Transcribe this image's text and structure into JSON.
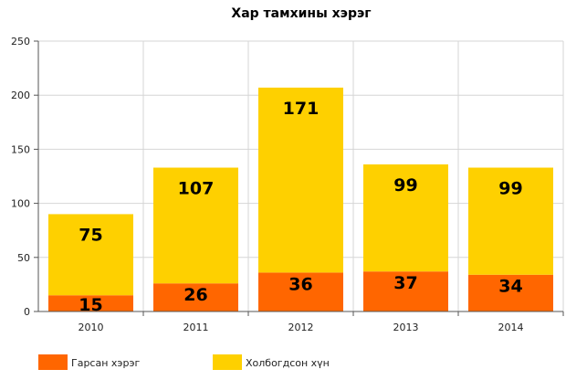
{
  "chart_data": {
    "type": "bar",
    "stacked": true,
    "title": "Хар тамхины хэрэг",
    "categories": [
      "2010",
      "2011",
      "2012",
      "2013",
      "2014"
    ],
    "series": [
      {
        "name": "Гарсан хэрэг",
        "color": "#ff6600",
        "values": [
          15,
          26,
          36,
          37,
          34
        ]
      },
      {
        "name": "Холбогдсон хүн",
        "color": "#fed000",
        "values": [
          75,
          107,
          171,
          99,
          99
        ]
      }
    ],
    "ylim": [
      0,
      250
    ],
    "yticks": [
      "0",
      "50",
      "100",
      "150",
      "200",
      "250"
    ],
    "grid": true,
    "legend": "bottom-left",
    "xlabel": "",
    "ylabel": ""
  }
}
